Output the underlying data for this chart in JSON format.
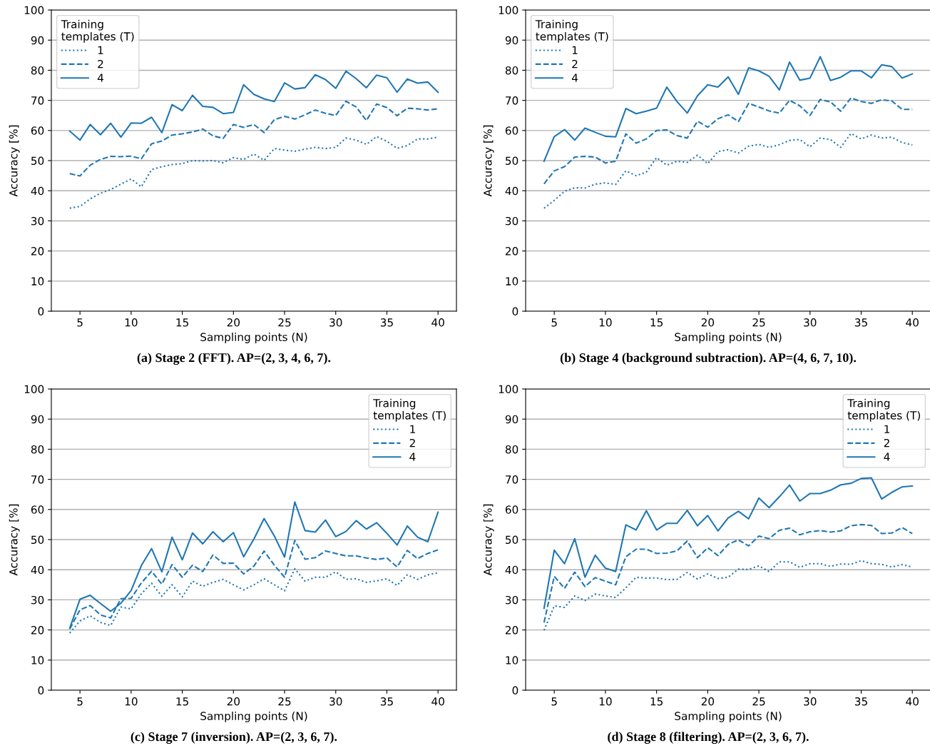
{
  "chart_data": [
    {
      "type": "line",
      "xlabel": "Sampling points (N)",
      "ylabel": "Accuracy [%]",
      "legend_title": "Training\ntemplates (T)",
      "legend": "top left",
      "grid": "y",
      "annotations": [
        "(a) Stage 2 (FFT). AP=(2, 3, 4, 6, 7)."
      ],
      "x": [
        4,
        5,
        6,
        7,
        8,
        9,
        10,
        11,
        12,
        13,
        14,
        15,
        16,
        17,
        18,
        19,
        20,
        21,
        22,
        23,
        24,
        25,
        26,
        27,
        28,
        29,
        30,
        31,
        32,
        33,
        34,
        35,
        36,
        37,
        38,
        39,
        40
      ],
      "xlim": [
        2.2,
        41.8
      ],
      "xticks": [
        5,
        10,
        15,
        20,
        25,
        30,
        35,
        40
      ],
      "ylim": [
        0,
        100
      ],
      "yticks": [
        0,
        10,
        20,
        30,
        40,
        50,
        60,
        70,
        80,
        90,
        100
      ],
      "series": [
        {
          "name": "1",
          "color": "#1f77b4",
          "line_style": "dotted",
          "values": [
            34.2,
            34.8,
            37.3,
            39.2,
            40.4,
            42.2,
            43.9,
            41.3,
            47,
            48,
            48.7,
            49,
            50,
            49.9,
            50,
            49.3,
            51,
            50.4,
            52.2,
            50.1,
            54,
            53.5,
            53.1,
            53.8,
            54.4,
            54,
            54.4,
            57.5,
            56.8,
            55.4,
            58,
            56.4,
            54.1,
            55,
            57.2,
            57.2,
            57.8
          ]
        },
        {
          "name": "2",
          "color": "#1f77b4",
          "line_style": "dashed",
          "values": [
            45.7,
            44.9,
            48.5,
            50.4,
            51.4,
            51.3,
            51.5,
            50.6,
            55.6,
            56.5,
            58.5,
            58.9,
            59.5,
            60.5,
            58.2,
            57.4,
            62,
            61,
            62,
            59.3,
            63.6,
            64.7,
            63.8,
            65.2,
            66.8,
            65.7,
            65,
            69.7,
            67.8,
            63.3,
            68.8,
            67.6,
            64.9,
            67.4,
            67.2,
            66.8,
            67.2
          ]
        },
        {
          "name": "4",
          "color": "#1f77b4",
          "line_style": "solid",
          "values": [
            59.8,
            56.8,
            62,
            58.6,
            62.4,
            57.8,
            62.5,
            62.4,
            64.4,
            59.3,
            68.6,
            66.6,
            71.7,
            68,
            67.7,
            65.6,
            66,
            75.2,
            72,
            70.5,
            69.6,
            75.8,
            73.8,
            74.2,
            78.5,
            76.9,
            74,
            79.7,
            77.2,
            74.2,
            78.4,
            77.5,
            72.7,
            77.1,
            75.7,
            76.1,
            72.7
          ]
        }
      ]
    },
    {
      "type": "line",
      "xlabel": "Sampling points (N)",
      "ylabel": "Accuracy [%]",
      "legend_title": "Training\ntemplates (T)",
      "legend": "top left",
      "grid": "y",
      "annotations": [
        "(b) Stage 4 (background subtraction). AP=(4, 6, 7, 10)."
      ],
      "x": [
        4,
        5,
        6,
        7,
        8,
        9,
        10,
        11,
        12,
        13,
        14,
        15,
        16,
        17,
        18,
        19,
        20,
        21,
        22,
        23,
        24,
        25,
        26,
        27,
        28,
        29,
        30,
        31,
        32,
        33,
        34,
        35,
        36,
        37,
        38,
        39,
        40
      ],
      "xlim": [
        2.2,
        41.8
      ],
      "xticks": [
        5,
        10,
        15,
        20,
        25,
        30,
        35,
        40
      ],
      "ylim": [
        0,
        100
      ],
      "yticks": [
        0,
        10,
        20,
        30,
        40,
        50,
        60,
        70,
        80,
        90,
        100
      ],
      "series": [
        {
          "name": "1",
          "color": "#1f77b4",
          "line_style": "dotted",
          "values": [
            34.2,
            36.8,
            39.8,
            41,
            40.9,
            42.2,
            42.6,
            42.1,
            46.6,
            45,
            46.2,
            51,
            48.5,
            49.8,
            49.4,
            51.8,
            49,
            53,
            53.6,
            52.5,
            54.8,
            55.4,
            54.4,
            55.3,
            56.7,
            57,
            54.6,
            57.5,
            57,
            54.4,
            59,
            57.2,
            58.5,
            57.5,
            57.8,
            56,
            55.2
          ]
        },
        {
          "name": "2",
          "color": "#1f77b4",
          "line_style": "dashed",
          "values": [
            42.3,
            46.6,
            48,
            51.2,
            51.4,
            51.2,
            49.2,
            49.8,
            58.9,
            55.8,
            57.2,
            60,
            60.2,
            58.3,
            57.5,
            63.1,
            61.1,
            63.9,
            65.2,
            63,
            69,
            67.8,
            66.5,
            65.8,
            70,
            68.2,
            65,
            70.3,
            69.5,
            66.4,
            70.8,
            69.6,
            69,
            70.2,
            69.8,
            67,
            67
          ]
        },
        {
          "name": "4",
          "color": "#1f77b4",
          "line_style": "solid",
          "values": [
            49.8,
            58,
            60.3,
            56.8,
            60.8,
            59.4,
            58.1,
            57.9,
            67.3,
            65.6,
            66.4,
            67.4,
            74.4,
            69.6,
            65.8,
            71.5,
            75.2,
            74.4,
            77.8,
            72,
            80.8,
            79.8,
            78,
            73.5,
            82.7,
            76.7,
            77.4,
            84.5,
            76.6,
            77.7,
            79.8,
            79.8,
            77.5,
            81.8,
            81.2,
            77.4,
            78.8
          ]
        }
      ]
    },
    {
      "type": "line",
      "xlabel": "Sampling points (N)",
      "ylabel": "Accuracy [%]",
      "legend_title": "Training\ntemplates (T)",
      "legend": "top right",
      "grid": "y",
      "annotations": [
        "(c) Stage 7 (inversion). AP=(2, 3, 6, 7)."
      ],
      "x": [
        4,
        5,
        6,
        7,
        8,
        9,
        10,
        11,
        12,
        13,
        14,
        15,
        16,
        17,
        18,
        19,
        20,
        21,
        22,
        23,
        24,
        25,
        26,
        27,
        28,
        29,
        30,
        31,
        32,
        33,
        34,
        35,
        36,
        37,
        38,
        39,
        40
      ],
      "xlim": [
        2.2,
        41.8
      ],
      "xticks": [
        5,
        10,
        15,
        20,
        25,
        30,
        35,
        40
      ],
      "ylim": [
        0,
        100
      ],
      "yticks": [
        0,
        10,
        20,
        30,
        40,
        50,
        60,
        70,
        80,
        90,
        100
      ],
      "series": [
        {
          "name": "1",
          "color": "#1f77b4",
          "line_style": "dotted",
          "values": [
            19,
            23,
            24.7,
            22.5,
            21.5,
            27.6,
            27,
            32,
            35.5,
            31.2,
            35,
            31,
            36.2,
            34.5,
            35.8,
            36.8,
            35,
            33.3,
            35,
            37,
            35,
            33,
            40.3,
            36.2,
            37.5,
            37.5,
            39.3,
            36.8,
            37,
            35.8,
            36.3,
            37,
            34.8,
            38.3,
            36.8,
            38.3,
            39
          ]
        },
        {
          "name": "2",
          "color": "#1f77b4",
          "line_style": "dashed",
          "values": [
            20.3,
            26.7,
            28.1,
            25,
            24,
            30.4,
            30.5,
            35.6,
            39.5,
            35.2,
            41.7,
            37.5,
            41.5,
            39.4,
            44.9,
            42.1,
            42.2,
            38.6,
            41.2,
            46.2,
            41.5,
            37.5,
            49.7,
            43.5,
            44,
            46.2,
            45.4,
            44.6,
            44.6,
            43.9,
            43.4,
            43.9,
            40.9,
            46.4,
            43.7,
            45.4,
            46.6
          ]
        },
        {
          "name": "4",
          "color": "#1f77b4",
          "line_style": "solid",
          "values": [
            20.6,
            30.2,
            31.5,
            28.8,
            26.2,
            28.9,
            33.1,
            41.4,
            47,
            39.3,
            50.8,
            43.3,
            52.2,
            48.6,
            52.6,
            49.3,
            52.3,
            44.3,
            50.2,
            57,
            51.2,
            44.2,
            62.5,
            53,
            52.5,
            56.5,
            51,
            52.7,
            56.3,
            53.5,
            55.6,
            52.1,
            48.2,
            54.5,
            50.8,
            49.3,
            59.1
          ]
        }
      ]
    },
    {
      "type": "line",
      "xlabel": "Sampling points (N)",
      "ylabel": "Accuracy [%]",
      "legend_title": "Training\ntemplates (T)",
      "legend": "top right",
      "grid": "y",
      "annotations": [
        "(d) Stage 8 (filtering). AP=(2, 3, 6, 7)."
      ],
      "x": [
        4,
        5,
        6,
        7,
        8,
        9,
        10,
        11,
        12,
        13,
        14,
        15,
        16,
        17,
        18,
        19,
        20,
        21,
        22,
        23,
        24,
        25,
        26,
        27,
        28,
        29,
        30,
        31,
        32,
        33,
        34,
        35,
        36,
        37,
        38,
        39,
        40
      ],
      "xlim": [
        2.2,
        41.8
      ],
      "xticks": [
        5,
        10,
        15,
        20,
        25,
        30,
        35,
        40
      ],
      "ylim": [
        0,
        100
      ],
      "yticks": [
        0,
        10,
        20,
        30,
        40,
        50,
        60,
        70,
        80,
        90,
        100
      ],
      "series": [
        {
          "name": "1",
          "color": "#1f77b4",
          "line_style": "dotted",
          "values": [
            19.9,
            28,
            27.5,
            31.3,
            29.8,
            31.9,
            31.3,
            30.8,
            34,
            37.5,
            37.2,
            37.3,
            36.7,
            36.8,
            39.1,
            36.9,
            38.6,
            37.1,
            37.5,
            40.2,
            40.1,
            41.3,
            39.4,
            42.6,
            42.6,
            40.8,
            42,
            42,
            41.1,
            41.9,
            41.8,
            43,
            42,
            41.8,
            40.9,
            41.7,
            40.9
          ]
        },
        {
          "name": "2",
          "color": "#1f77b4",
          "line_style": "dashed",
          "values": [
            22.5,
            37.8,
            33.8,
            39.2,
            34.4,
            37.4,
            36.2,
            35,
            44.3,
            46.8,
            46.8,
            45.4,
            45.5,
            46.3,
            49.5,
            44,
            47.3,
            44.7,
            48.4,
            49.9,
            47.9,
            51.2,
            50.3,
            53.1,
            53.8,
            51.6,
            52.6,
            53,
            52.5,
            52.9,
            54.6,
            55,
            54.7,
            52,
            52.2,
            54,
            52
          ]
        },
        {
          "name": "4",
          "color": "#1f77b4",
          "line_style": "solid",
          "values": [
            27.2,
            46.5,
            42,
            50.3,
            37.5,
            44.8,
            40.5,
            39.4,
            54.9,
            53.2,
            59.6,
            53.2,
            55.4,
            55.4,
            59.7,
            54.6,
            58,
            52.9,
            57.2,
            59.4,
            56.9,
            63.8,
            60.6,
            64.2,
            68.1,
            62.8,
            65.3,
            65.3,
            66.4,
            68.2,
            68.7,
            70.3,
            70.5,
            63.5,
            65.7,
            67.5,
            67.8
          ]
        }
      ]
    }
  ]
}
